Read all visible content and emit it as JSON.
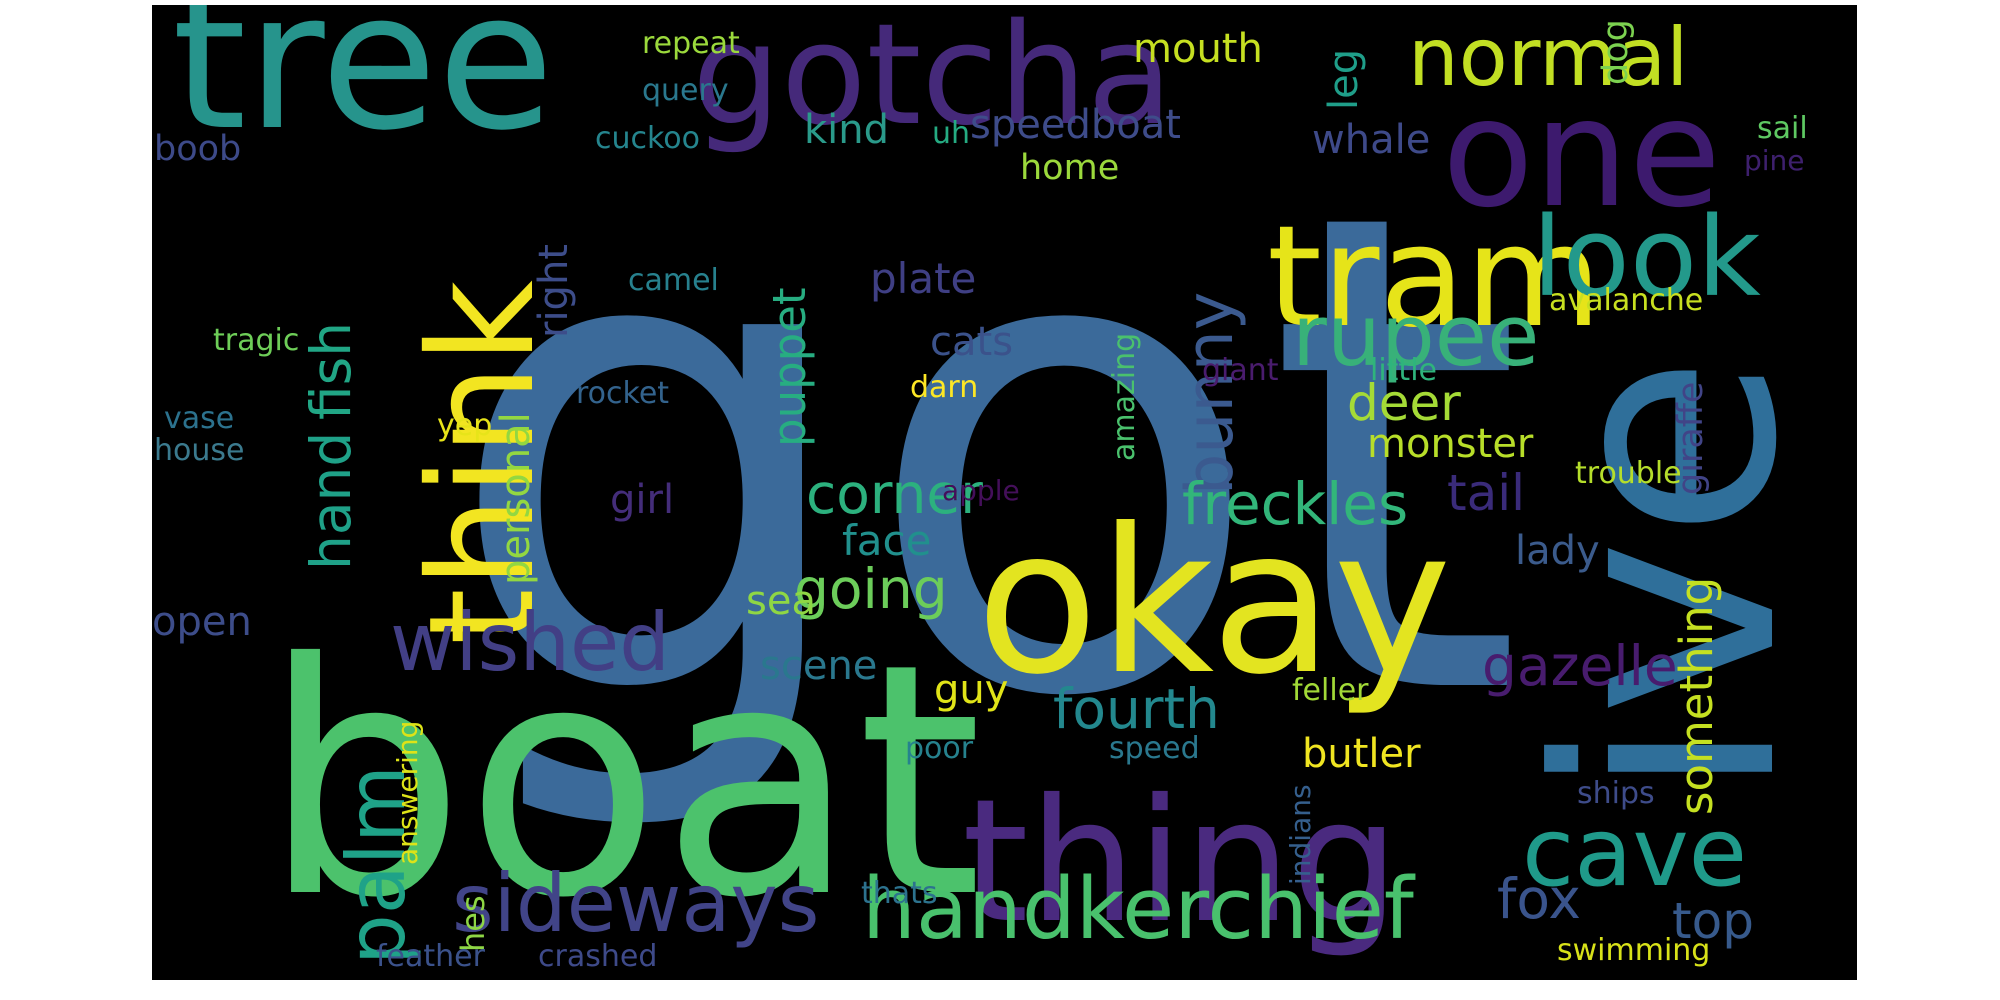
{
  "palette": {
    "background": "#000000",
    "steel_blue": "#3b6a9a",
    "green": "#4cc26c",
    "yellow": "#e3e420",
    "teal": "#2a938c",
    "purple": "#45297a",
    "indigo": "#3f4c8b",
    "mint": "#7cd251",
    "lime": "#b5de2b",
    "dark_purple": "#440c55",
    "sea": "#23a883"
  },
  "words": [
    {
      "text": "got",
      "color": "#3b6a9a"
    },
    {
      "text": "boat",
      "color": "#4cc26c"
    },
    {
      "text": "okay",
      "color": "#e3e420"
    },
    {
      "text": "ive",
      "color": "#2f6f9a"
    },
    {
      "text": "tree",
      "color": "#26948c"
    },
    {
      "text": "gotcha",
      "color": "#45297a"
    },
    {
      "text": "one",
      "color": "#3d1a6e"
    },
    {
      "text": "thing",
      "color": "#4a2a7f"
    },
    {
      "text": "think",
      "color": "#f2e521"
    },
    {
      "text": "tram",
      "color": "#e6e419"
    },
    {
      "text": "look",
      "color": "#23998b"
    },
    {
      "text": "normal",
      "color": "#c2df23"
    },
    {
      "text": "rupee",
      "color": "#38b179"
    },
    {
      "text": "cave",
      "color": "#1f9a8a"
    },
    {
      "text": "handkerchief",
      "color": "#49c16d"
    },
    {
      "text": "sideways",
      "color": "#414488"
    },
    {
      "text": "wished",
      "color": "#423f85"
    },
    {
      "text": "palm",
      "color": "#1fa288"
    },
    {
      "text": "bunny",
      "color": "#3b5a8f"
    },
    {
      "text": "fourth",
      "color": "#23888e"
    },
    {
      "text": "freckles",
      "color": "#32b67a"
    },
    {
      "text": "gazelle",
      "color": "#481c6e"
    },
    {
      "text": "corner",
      "color": "#2cb17e"
    },
    {
      "text": "going",
      "color": "#6ccd5a"
    },
    {
      "text": "fish",
      "color": "#21a685"
    },
    {
      "text": "hand",
      "color": "#1fa188"
    },
    {
      "text": "deer",
      "color": "#a5db36"
    },
    {
      "text": "tail",
      "color": "#3a2b7a"
    },
    {
      "text": "something",
      "color": "#c5e021"
    },
    {
      "text": "fox",
      "color": "#3a548c"
    },
    {
      "text": "top",
      "color": "#375a8c"
    },
    {
      "text": "personal",
      "color": "#93d741"
    },
    {
      "text": "right",
      "color": "#3d4d8a"
    },
    {
      "text": "puppet",
      "color": "#27ad81"
    },
    {
      "text": "monster",
      "color": "#b8de29"
    },
    {
      "text": "speedboat",
      "color": "#3e4c8a"
    },
    {
      "text": "mouth",
      "color": "#c6e021"
    },
    {
      "text": "kind",
      "color": "#2a9a8a"
    },
    {
      "text": "plate",
      "color": "#3f3f84"
    },
    {
      "text": "cats",
      "color": "#3b528b"
    },
    {
      "text": "face",
      "color": "#21908d"
    },
    {
      "text": "sea",
      "color": "#8fd744"
    },
    {
      "text": "scene",
      "color": "#2a788e"
    },
    {
      "text": "guy",
      "color": "#e1e418"
    },
    {
      "text": "butler",
      "color": "#f0e521"
    },
    {
      "text": "lady",
      "color": "#3b5b8c"
    },
    {
      "text": "open",
      "color": "#3d4d8a"
    },
    {
      "text": "whale",
      "color": "#3e4a89"
    },
    {
      "text": "leg",
      "color": "#1f9e89"
    },
    {
      "text": "dog",
      "color": "#7cd250"
    },
    {
      "text": "home",
      "color": "#9bd93c"
    },
    {
      "text": "girl",
      "color": "#442d7a"
    },
    {
      "text": "boob",
      "color": "#3d4a89"
    },
    {
      "text": "giraffe",
      "color": "#414487"
    },
    {
      "text": "repeat",
      "color": "#9bd93c"
    },
    {
      "text": "query",
      "color": "#2a788e"
    },
    {
      "text": "cuckoo",
      "color": "#25858e"
    },
    {
      "text": "uh",
      "color": "#25ab82"
    },
    {
      "text": "sail",
      "color": "#5ec962"
    },
    {
      "text": "pine",
      "color": "#3e206e"
    },
    {
      "text": "avalanche",
      "color": "#c8e020"
    },
    {
      "text": "camel",
      "color": "#27818e"
    },
    {
      "text": "tragic",
      "color": "#6ece58"
    },
    {
      "text": "vase",
      "color": "#2c728e"
    },
    {
      "text": "house",
      "color": "#3b7a8e"
    },
    {
      "text": "rocket",
      "color": "#33638d"
    },
    {
      "text": "yep",
      "color": "#e7e419"
    },
    {
      "text": "darn",
      "color": "#fde725"
    },
    {
      "text": "amazing",
      "color": "#4ac16d"
    },
    {
      "text": "giant",
      "color": "#4a1c6e"
    },
    {
      "text": "little",
      "color": "#2fb47c"
    },
    {
      "text": "apple",
      "color": "#440f5a"
    },
    {
      "text": "trouble",
      "color": "#b5de2b"
    },
    {
      "text": "feller",
      "color": "#a2da37"
    },
    {
      "text": "answering",
      "color": "#dde318"
    },
    {
      "text": "poor",
      "color": "#26828e"
    },
    {
      "text": "speed",
      "color": "#2a788e"
    },
    {
      "text": "indians",
      "color": "#355f8d"
    },
    {
      "text": "ships",
      "color": "#3e4c8a"
    },
    {
      "text": "hes",
      "color": "#8ed645"
    },
    {
      "text": "thats",
      "color": "#2c728e"
    },
    {
      "text": "feather",
      "color": "#3b528b"
    },
    {
      "text": "crashed",
      "color": "#3e4a89"
    },
    {
      "text": "swimming",
      "color": "#d8e219"
    }
  ]
}
